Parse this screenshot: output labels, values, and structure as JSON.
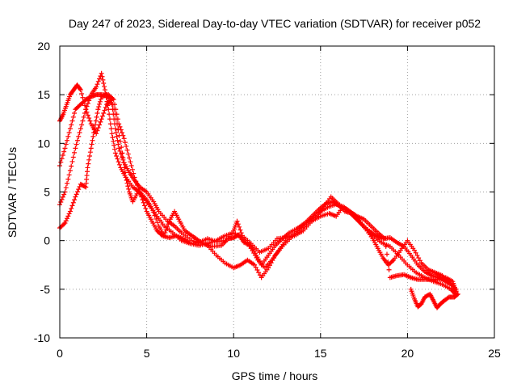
{
  "chart_data": {
    "type": "scatter",
    "title": "Day 247 of 2023, Sidereal Day-to-day VTEC variation (SDTVAR) for receiver p052",
    "xlabel": "GPS time / hours",
    "ylabel": "SDTVAR / TECUs",
    "xlim": [
      0,
      25
    ],
    "ylim": [
      -10,
      20
    ],
    "xticks": [
      0,
      5,
      10,
      15,
      20,
      25
    ],
    "yticks": [
      -10,
      -5,
      0,
      5,
      10,
      15,
      20
    ],
    "grid": true,
    "marker": "+",
    "color": "#ff0000",
    "series": [
      {
        "name": "track-1",
        "points": [
          [
            0.0,
            1.3
          ],
          [
            0.3,
            1.8
          ],
          [
            0.6,
            3.0
          ],
          [
            0.9,
            4.5
          ],
          [
            1.2,
            5.8
          ],
          [
            1.5,
            5.5
          ],
          [
            1.6,
            7.5
          ],
          [
            1.8,
            9.5
          ],
          [
            2.0,
            11.5
          ],
          [
            2.2,
            13.5
          ],
          [
            2.4,
            14.8
          ],
          [
            2.7,
            15.0
          ],
          [
            3.0,
            14.0
          ],
          [
            3.2,
            11.5
          ],
          [
            3.4,
            9.5
          ],
          [
            3.7,
            8.0
          ],
          [
            4.0,
            7.0
          ],
          [
            4.3,
            6.2
          ],
          [
            4.6,
            5.5
          ],
          [
            5.0,
            5.0
          ],
          [
            5.4,
            4.0
          ],
          [
            5.7,
            3.0
          ],
          [
            6.2,
            2.0
          ],
          [
            6.6,
            1.5
          ],
          [
            7.0,
            0.8
          ],
          [
            7.6,
            0.0
          ],
          [
            8.2,
            -0.3
          ],
          [
            8.8,
            -0.6
          ],
          [
            9.3,
            -0.5
          ],
          [
            9.7,
            0.2
          ],
          [
            10.0,
            0.3
          ],
          [
            10.3,
            0.6
          ],
          [
            10.6,
            -0.2
          ],
          [
            11.0,
            -0.5
          ],
          [
            11.3,
            -1.5
          ],
          [
            11.6,
            -2.5
          ],
          [
            12.0,
            -1.5
          ],
          [
            12.4,
            -0.5
          ],
          [
            12.8,
            0.2
          ],
          [
            13.2,
            0.8
          ],
          [
            13.7,
            1.3
          ],
          [
            14.1,
            1.8
          ],
          [
            14.5,
            2.5
          ],
          [
            14.9,
            3.2
          ],
          [
            15.3,
            3.8
          ],
          [
            15.7,
            4.0
          ],
          [
            16.1,
            3.5
          ],
          [
            16.5,
            3.2
          ],
          [
            16.9,
            2.5
          ],
          [
            17.3,
            1.8
          ],
          [
            17.8,
            1.0
          ],
          [
            18.2,
            0.5
          ],
          [
            18.6,
            0.2
          ],
          [
            19.0,
            0.3
          ],
          [
            19.4,
            -0.2
          ],
          [
            19.8,
            -0.6
          ],
          [
            20.2,
            -1.5
          ],
          [
            20.6,
            -2.5
          ],
          [
            21.0,
            -3.2
          ],
          [
            21.4,
            -3.6
          ],
          [
            21.8,
            -3.8
          ],
          [
            22.2,
            -4.2
          ],
          [
            22.6,
            -4.6
          ],
          [
            22.8,
            -5.4
          ]
        ]
      },
      {
        "name": "track-2",
        "points": [
          [
            0.0,
            3.7
          ],
          [
            0.3,
            5.0
          ],
          [
            0.6,
            7.2
          ],
          [
            0.9,
            9.5
          ],
          [
            1.2,
            11.5
          ],
          [
            1.5,
            13.5
          ],
          [
            1.8,
            15.0
          ],
          [
            2.1,
            15.8
          ],
          [
            2.4,
            17.2
          ],
          [
            2.6,
            15.5
          ],
          [
            2.8,
            13.5
          ],
          [
            3.0,
            11.0
          ],
          [
            3.2,
            9.0
          ],
          [
            3.5,
            7.5
          ],
          [
            3.8,
            6.5
          ],
          [
            4.2,
            5.5
          ],
          [
            4.6,
            5.0
          ],
          [
            5.0,
            4.2
          ],
          [
            5.3,
            3.3
          ],
          [
            5.7,
            1.5
          ],
          [
            6.0,
            0.5
          ],
          [
            6.3,
            2.0
          ],
          [
            6.6,
            3.0
          ],
          [
            6.9,
            2.0
          ],
          [
            7.2,
            1.0
          ],
          [
            7.6,
            0.5
          ],
          [
            8.0,
            0.0
          ],
          [
            8.5,
            -0.5
          ],
          [
            9.0,
            -1.5
          ],
          [
            9.5,
            -2.3
          ],
          [
            10.0,
            -2.8
          ],
          [
            10.4,
            -2.5
          ],
          [
            10.8,
            -2.0
          ],
          [
            11.2,
            -2.5
          ],
          [
            11.6,
            -3.8
          ],
          [
            12.0,
            -2.8
          ],
          [
            12.4,
            -1.5
          ],
          [
            12.8,
            -0.6
          ],
          [
            13.3,
            0.3
          ],
          [
            13.8,
            1.0
          ],
          [
            14.3,
            1.8
          ],
          [
            14.8,
            2.5
          ],
          [
            15.2,
            3.5
          ],
          [
            15.6,
            4.5
          ],
          [
            16.0,
            3.8
          ],
          [
            16.4,
            3.0
          ],
          [
            16.8,
            2.8
          ],
          [
            17.2,
            2.0
          ],
          [
            17.6,
            1.2
          ],
          [
            18.0,
            0.2
          ],
          [
            18.3,
            -0.8
          ],
          [
            18.6,
            -1.8
          ],
          [
            18.9,
            -2.5
          ],
          [
            19.2,
            -2.0
          ],
          [
            19.6,
            -1.0
          ],
          [
            20.0,
            0.0
          ],
          [
            20.4,
            -1.0
          ],
          [
            20.8,
            -2.3
          ],
          [
            21.2,
            -3.0
          ],
          [
            21.6,
            -3.3
          ],
          [
            22.0,
            -3.6
          ],
          [
            22.4,
            -4.3
          ],
          [
            22.8,
            -5.0
          ]
        ]
      },
      {
        "name": "track-3",
        "points": [
          [
            0.0,
            7.7
          ],
          [
            0.3,
            9.5
          ],
          [
            0.6,
            11.5
          ],
          [
            0.9,
            13.5
          ],
          [
            1.2,
            14.0
          ],
          [
            1.5,
            14.5
          ],
          [
            1.8,
            14.8
          ],
          [
            2.1,
            15.0
          ],
          [
            2.4,
            15.0
          ],
          [
            2.8,
            15.0
          ],
          [
            3.1,
            14.5
          ],
          [
            3.4,
            12.0
          ],
          [
            3.7,
            10.5
          ],
          [
            4.0,
            8.5
          ],
          [
            4.3,
            6.5
          ],
          [
            4.7,
            4.5
          ],
          [
            5.0,
            3.0
          ],
          [
            5.3,
            2.0
          ],
          [
            5.6,
            1.0
          ],
          [
            5.9,
            0.5
          ],
          [
            6.3,
            0.3
          ],
          [
            6.7,
            0.5
          ],
          [
            7.1,
            0.2
          ],
          [
            7.5,
            -0.3
          ],
          [
            8.0,
            -0.5
          ],
          [
            8.5,
            -0.3
          ],
          [
            9.0,
            0.0
          ],
          [
            9.5,
            0.5
          ],
          [
            10.0,
            0.8
          ],
          [
            10.5,
            0.3
          ],
          [
            11.0,
            -0.8
          ],
          [
            11.4,
            -2.0
          ],
          [
            11.8,
            -2.8
          ],
          [
            12.2,
            -2.0
          ],
          [
            12.6,
            -1.0
          ],
          [
            13.0,
            0.0
          ],
          [
            13.5,
            0.8
          ],
          [
            14.0,
            1.5
          ],
          [
            14.5,
            2.3
          ],
          [
            15.0,
            3.0
          ],
          [
            15.5,
            3.5
          ],
          [
            16.0,
            3.8
          ],
          [
            16.5,
            3.2
          ],
          [
            17.0,
            2.5
          ],
          [
            17.5,
            1.5
          ],
          [
            18.0,
            0.5
          ],
          [
            18.5,
            -0.2
          ],
          [
            19.0,
            -0.6
          ],
          [
            19.5,
            -1.5
          ],
          [
            20.0,
            -2.5
          ],
          [
            20.5,
            -3.3
          ],
          [
            21.0,
            -3.8
          ],
          [
            21.5,
            -4.2
          ],
          [
            22.0,
            -4.5
          ],
          [
            22.5,
            -5.0
          ],
          [
            22.8,
            -5.6
          ]
        ]
      },
      {
        "name": "track-4",
        "points": [
          [
            0.0,
            12.3
          ],
          [
            0.2,
            13.0
          ],
          [
            0.4,
            14.0
          ],
          [
            0.6,
            15.0
          ],
          [
            0.8,
            15.5
          ],
          [
            1.0,
            16.0
          ],
          [
            1.2,
            15.5
          ],
          [
            1.5,
            13.5
          ],
          [
            1.8,
            12.0
          ],
          [
            2.1,
            11.0
          ],
          [
            2.4,
            12.5
          ],
          [
            2.7,
            14.0
          ],
          [
            3.0,
            14.5
          ],
          [
            3.3,
            12.0
          ],
          [
            3.6,
            9.0
          ],
          [
            3.8,
            6.5
          ],
          [
            4.0,
            5.0
          ],
          [
            4.2,
            4.0
          ],
          [
            4.5,
            5.0
          ],
          [
            4.8,
            4.5
          ],
          [
            5.2,
            3.5
          ],
          [
            5.6,
            2.5
          ],
          [
            6.0,
            1.5
          ],
          [
            6.5,
            0.8
          ],
          [
            7.0,
            0.0
          ],
          [
            7.5,
            -0.3
          ],
          [
            8.0,
            -0.2
          ],
          [
            8.5,
            0.2
          ],
          [
            9.0,
            -0.1
          ],
          [
            9.5,
            0.0
          ],
          [
            10.0,
            1.0
          ],
          [
            10.2,
            2.0
          ],
          [
            10.5,
            0.5
          ],
          [
            11.0,
            -0.3
          ],
          [
            11.5,
            -1.2
          ],
          [
            12.0,
            -0.8
          ],
          [
            12.5,
            0.2
          ],
          [
            13.0,
            0.3
          ],
          [
            13.5,
            0.5
          ],
          [
            14.0,
            1.0
          ],
          [
            14.5,
            2.0
          ],
          [
            15.0,
            2.5
          ],
          [
            15.5,
            2.8
          ],
          [
            15.9,
            2.5
          ],
          [
            16.3,
            3.5
          ],
          [
            16.7,
            3.0
          ],
          [
            17.1,
            2.5
          ],
          [
            17.5,
            2.2
          ],
          [
            17.9,
            1.5
          ],
          [
            18.3,
            0.8
          ],
          [
            18.7,
            0.2
          ],
          [
            19.0,
            -3.8
          ],
          [
            19.4,
            -3.6
          ],
          [
            19.8,
            -3.5
          ],
          [
            20.2,
            -3.8
          ],
          [
            20.6,
            -4.0
          ],
          [
            21.0,
            -4.0
          ],
          [
            21.4,
            -4.0
          ],
          [
            21.8,
            -4.0
          ],
          [
            22.2,
            -3.8
          ],
          [
            22.6,
            -4.2
          ],
          [
            22.8,
            -5.2
          ]
        ]
      },
      {
        "name": "track-5",
        "points": [
          [
            20.2,
            -5.0
          ],
          [
            20.4,
            -6.0
          ],
          [
            20.6,
            -6.8
          ],
          [
            20.8,
            -6.5
          ],
          [
            21.0,
            -5.8
          ],
          [
            21.3,
            -5.5
          ],
          [
            21.5,
            -6.2
          ],
          [
            21.7,
            -6.9
          ],
          [
            21.9,
            -6.5
          ],
          [
            22.1,
            -6.2
          ],
          [
            22.4,
            -5.8
          ],
          [
            22.7,
            -5.8
          ],
          [
            22.9,
            -5.5
          ]
        ]
      }
    ]
  }
}
